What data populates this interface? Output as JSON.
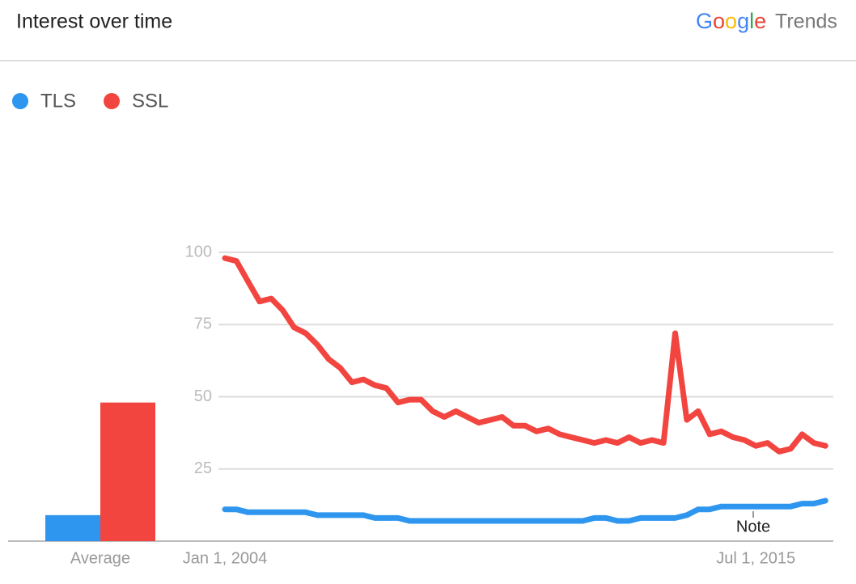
{
  "header": {
    "title": "Interest over time",
    "brand": "Google",
    "product": "Trends"
  },
  "chart_data": {
    "type": "line",
    "x": [
      "2004-01-01",
      "2004-04-01",
      "2004-07-01",
      "2004-10-01",
      "2005-01-01",
      "2005-04-01",
      "2005-07-01",
      "2005-10-01",
      "2006-01-01",
      "2006-04-01",
      "2006-07-01",
      "2006-10-01",
      "2007-01-01",
      "2007-04-01",
      "2007-07-01",
      "2007-10-01",
      "2008-01-01",
      "2008-04-01",
      "2008-07-01",
      "2008-10-01",
      "2009-01-01",
      "2009-04-01",
      "2009-07-01",
      "2009-10-01",
      "2010-01-01",
      "2010-04-01",
      "2010-07-01",
      "2010-10-01",
      "2011-01-01",
      "2011-04-01",
      "2011-07-01",
      "2011-10-01",
      "2012-01-01",
      "2012-04-01",
      "2012-07-01",
      "2012-10-01",
      "2013-01-01",
      "2013-04-01",
      "2013-07-01",
      "2013-10-01",
      "2014-01-01",
      "2014-04-01",
      "2014-07-01",
      "2014-10-01",
      "2015-01-01",
      "2015-04-01",
      "2015-07-01",
      "2015-10-01",
      "2016-01-01",
      "2016-04-01",
      "2016-07-01",
      "2016-10-01",
      "2017-01-01"
    ],
    "series": [
      {
        "name": "TLS",
        "color": "#2f96f0",
        "values": [
          11,
          11,
          10,
          10,
          10,
          10,
          10,
          10,
          9,
          9,
          9,
          9,
          9,
          8,
          8,
          8,
          7,
          7,
          7,
          7,
          7,
          7,
          7,
          7,
          7,
          7,
          7,
          7,
          7,
          7,
          7,
          7,
          8,
          8,
          7,
          7,
          8,
          8,
          8,
          8,
          9,
          11,
          11,
          12,
          12,
          12,
          12,
          12,
          12,
          12,
          13,
          13,
          14
        ]
      },
      {
        "name": "SSL",
        "color": "#f24540",
        "values": [
          98,
          97,
          90,
          83,
          84,
          80,
          74,
          72,
          68,
          63,
          60,
          55,
          56,
          54,
          53,
          48,
          49,
          49,
          45,
          43,
          45,
          43,
          41,
          42,
          43,
          40,
          40,
          38,
          39,
          37,
          36,
          35,
          34,
          35,
          34,
          36,
          34,
          35,
          34,
          72,
          42,
          45,
          37,
          38,
          36,
          35,
          33,
          34,
          31,
          32,
          37,
          34,
          33
        ]
      }
    ],
    "xlim": [
      "2004-01-01",
      "2017-02-01"
    ],
    "xticks": [
      {
        "value": "2004-01-01",
        "label": "Jan 1, 2004"
      },
      {
        "value": "2015-07-01",
        "label": "Jul 1, 2015"
      }
    ],
    "ylim": [
      0,
      100
    ],
    "yticks": [
      25,
      50,
      75,
      100
    ],
    "grid": true,
    "averages": {
      "label": "Average",
      "values": [
        9,
        48
      ]
    },
    "note": "Note"
  }
}
